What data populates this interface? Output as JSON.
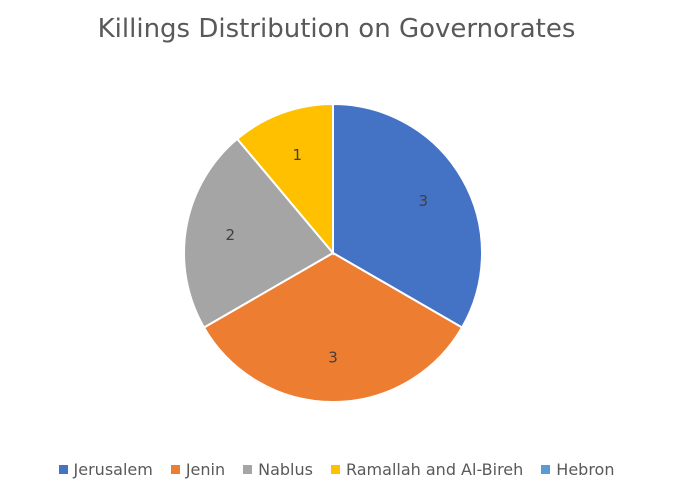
{
  "chart_data": {
    "type": "pie",
    "title": "Killings Distribution on Governorates",
    "categories": [
      "Jerusalem",
      "Jenin",
      "Nablus",
      "Ramallah and Al-Bireh",
      "Hebron"
    ],
    "values": [
      3,
      3,
      2,
      1,
      0
    ],
    "data_labels": [
      "3",
      "3",
      "2",
      "1",
      ""
    ],
    "colors": [
      "#4472C4",
      "#ED7D31",
      "#A5A5A5",
      "#FFC000",
      "#5B9BD5"
    ],
    "legend_position": "bottom",
    "start_angle": "12 o'clock",
    "direction": "clockwise"
  }
}
